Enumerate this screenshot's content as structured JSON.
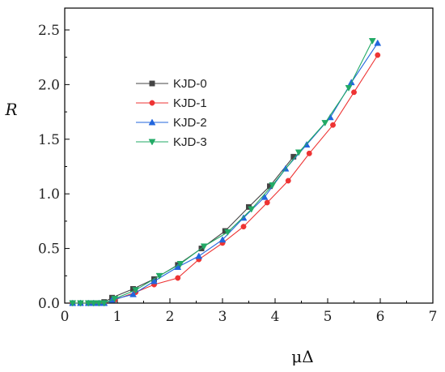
{
  "chart_data": {
    "type": "line",
    "xlabel": "μΔ",
    "ylabel": "R",
    "xlim": [
      0,
      7
    ],
    "ylim": [
      0,
      2.7
    ],
    "x_ticks": [
      0,
      1,
      2,
      3,
      4,
      5,
      6,
      7
    ],
    "y_ticks": [
      0.0,
      0.5,
      1.0,
      1.5,
      2.0,
      2.5
    ],
    "x_tick_labels": [
      "0",
      "1",
      "2",
      "3",
      "4",
      "5",
      "6",
      "7"
    ],
    "y_tick_labels": [
      "0.0",
      "0.5",
      "1.0",
      "1.5",
      "2.0",
      "2.5"
    ],
    "grid": false,
    "legend_position": "upper-left",
    "series": [
      {
        "name": "KJD-0",
        "color": "#444444",
        "marker": "square",
        "x": [
          0.15,
          0.3,
          0.45,
          0.55,
          0.65,
          0.75,
          0.9,
          1.3,
          1.7,
          2.15,
          2.6,
          3.05,
          3.5,
          3.9,
          4.35
        ],
        "y": [
          0.0,
          0.0,
          0.0,
          0.0,
          0.0,
          0.01,
          0.05,
          0.13,
          0.22,
          0.35,
          0.5,
          0.66,
          0.88,
          1.07,
          1.34
        ]
      },
      {
        "name": "KJD-1",
        "color": "#ee3333",
        "marker": "circle",
        "x": [
          0.15,
          0.3,
          0.45,
          0.55,
          0.65,
          0.75,
          0.95,
          1.35,
          1.7,
          2.15,
          2.55,
          3.0,
          3.4,
          3.85,
          4.25,
          4.65,
          5.1,
          5.5,
          5.95
        ],
        "y": [
          0.0,
          0.0,
          0.0,
          0.0,
          0.0,
          0.0,
          0.03,
          0.1,
          0.17,
          0.23,
          0.4,
          0.55,
          0.7,
          0.92,
          1.12,
          1.37,
          1.63,
          1.93,
          2.27
        ]
      },
      {
        "name": "KJD-2",
        "color": "#2266dd",
        "marker": "triangle-up",
        "x": [
          0.15,
          0.3,
          0.45,
          0.55,
          0.65,
          0.75,
          0.9,
          1.3,
          1.7,
          2.15,
          2.55,
          3.0,
          3.4,
          3.8,
          4.2,
          4.6,
          5.05,
          5.45,
          5.95
        ],
        "y": [
          0.0,
          0.0,
          0.0,
          0.0,
          0.0,
          0.0,
          0.03,
          0.08,
          0.2,
          0.33,
          0.43,
          0.58,
          0.78,
          0.97,
          1.23,
          1.45,
          1.7,
          2.02,
          2.38
        ]
      },
      {
        "name": "KJD-3",
        "color": "#22aa66",
        "marker": "triangle-down",
        "x": [
          0.15,
          0.3,
          0.45,
          0.55,
          0.65,
          0.75,
          0.95,
          1.35,
          1.8,
          2.2,
          2.65,
          3.1,
          3.55,
          3.95,
          4.45,
          4.95,
          5.4,
          5.85
        ],
        "y": [
          0.0,
          0.0,
          0.0,
          0.0,
          0.0,
          0.0,
          0.04,
          0.12,
          0.25,
          0.36,
          0.52,
          0.65,
          0.86,
          1.08,
          1.38,
          1.65,
          1.97,
          2.4
        ]
      }
    ]
  }
}
